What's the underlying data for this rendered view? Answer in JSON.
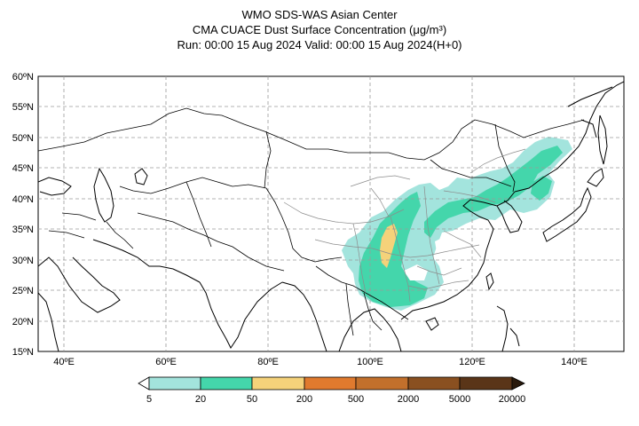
{
  "header": {
    "line1": "WMO SDS-WAS Asian Center",
    "line2": "CMA CUACE Dust Surface Concentration (μg/m³)",
    "line3": "Run: 00:00 15 Aug 2024    Valid: 00:00 15 Aug 2024(H+0)"
  },
  "map": {
    "lat_ticks": [
      "60ºN",
      "55ºN",
      "50ºN",
      "45ºN",
      "40ºN",
      "35ºN",
      "30ºN",
      "25ºN",
      "20ºN",
      "15ºN"
    ],
    "lon_ticks": [
      "40ºE",
      "60ºE",
      "80ºE",
      "100ºE",
      "120ºE",
      "140ºE"
    ],
    "lat_range": [
      15,
      60
    ],
    "lon_range": [
      35,
      150
    ],
    "grid": "dashed"
  },
  "legend": {
    "labels": [
      "5",
      "20",
      "50",
      "200",
      "500",
      "2000",
      "5000",
      "20000"
    ],
    "colors": [
      "#a3e4dd",
      "#44d6ab",
      "#f5d27a",
      "#e07a2e",
      "#c2702c",
      "#8a5020",
      "#5a3518",
      "#2a1a0c"
    ]
  }
}
